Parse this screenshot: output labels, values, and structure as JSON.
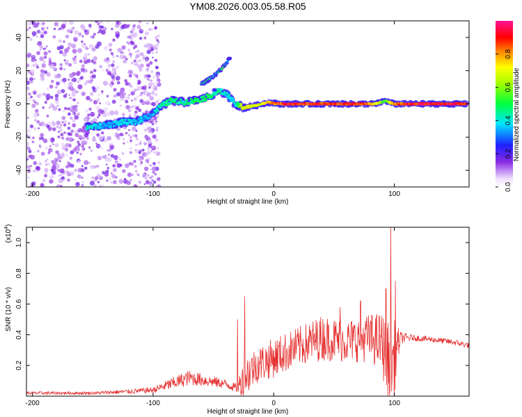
{
  "title": "YM08.2026.003.05.58.R05",
  "chart_data": [
    {
      "type": "heatmap",
      "name": "spectrogram",
      "xlabel": "Height of straight line (km)",
      "ylabel": "Frequency (Hz)",
      "xlim": [
        -205,
        162
      ],
      "ylim": [
        -50,
        50
      ],
      "xticks": [
        -200,
        -100,
        0,
        100
      ],
      "yticks": [
        -40,
        -20,
        0,
        20,
        40
      ],
      "colorbar": {
        "label": "Normalized spectral amplitude",
        "range": [
          0,
          1
        ],
        "ticks": [
          0.0,
          0.2,
          0.4,
          0.6,
          0.8
        ],
        "tick_labels": [
          "0.0",
          "0.2",
          "0.4",
          "0.6",
          "0.8"
        ]
      },
      "ridge": [
        {
          "x": -155,
          "y": -14,
          "a": 0.45
        },
        {
          "x": -140,
          "y": -13,
          "a": 0.35
        },
        {
          "x": -125,
          "y": -11,
          "a": 0.4
        },
        {
          "x": -115,
          "y": -11,
          "a": 0.4
        },
        {
          "x": -100,
          "y": -6,
          "a": 0.35
        },
        {
          "x": -95,
          "y": -2,
          "a": 0.45
        },
        {
          "x": -85,
          "y": 2,
          "a": 0.5
        },
        {
          "x": -75,
          "y": 1,
          "a": 0.45
        },
        {
          "x": -65,
          "y": 2,
          "a": 0.5
        },
        {
          "x": -55,
          "y": 4,
          "a": 0.5
        },
        {
          "x": -45,
          "y": 8,
          "a": 0.45
        },
        {
          "x": -38,
          "y": 5,
          "a": 0.4
        },
        {
          "x": -32,
          "y": 0,
          "a": 0.4
        },
        {
          "x": -25,
          "y": -2,
          "a": 0.75
        },
        {
          "x": -15,
          "y": -1,
          "a": 0.7
        },
        {
          "x": -5,
          "y": 1,
          "a": 0.8
        },
        {
          "x": 5,
          "y": 0,
          "a": 0.9
        },
        {
          "x": 15,
          "y": 0,
          "a": 0.95
        },
        {
          "x": 25,
          "y": 0,
          "a": 0.9
        },
        {
          "x": 35,
          "y": 0,
          "a": 0.95
        },
        {
          "x": 45,
          "y": 0,
          "a": 0.9
        },
        {
          "x": 55,
          "y": 0,
          "a": 0.9
        },
        {
          "x": 65,
          "y": 0,
          "a": 0.95
        },
        {
          "x": 75,
          "y": 0,
          "a": 0.9
        },
        {
          "x": 85,
          "y": 0,
          "a": 0.75
        },
        {
          "x": 92,
          "y": 2,
          "a": 0.55
        },
        {
          "x": 100,
          "y": 0,
          "a": 0.85
        },
        {
          "x": 115,
          "y": 0,
          "a": 0.98
        },
        {
          "x": 130,
          "y": 0,
          "a": 0.95
        },
        {
          "x": 145,
          "y": 0,
          "a": 0.97
        },
        {
          "x": 160,
          "y": 0,
          "a": 0.95
        }
      ],
      "upper_branch": [
        {
          "x": -60,
          "y": 12,
          "a": 0.45
        },
        {
          "x": -55,
          "y": 14,
          "a": 0.5
        },
        {
          "x": -48,
          "y": 18,
          "a": 0.4
        },
        {
          "x": -42,
          "y": 22,
          "a": 0.55
        },
        {
          "x": -36,
          "y": 28,
          "a": 0.2
        }
      ]
    },
    {
      "type": "line",
      "name": "snr",
      "xlabel": "Height of straight line (km)",
      "ylabel": "SNR (10 * v/v)",
      "yscale_label": "(x10",
      "yscale_exp": "4",
      "xlim": [
        -205,
        162
      ],
      "ylim": [
        0.0,
        1.1
      ],
      "xticks": [
        -200,
        -100,
        0,
        100
      ],
      "yticks": [
        0.2,
        0.4,
        0.6,
        0.8,
        1.0
      ],
      "xtick_labels": [
        "-200",
        "-100",
        "0",
        "100"
      ],
      "ytick_labels": [
        "0.2",
        "0.4",
        "0.6",
        "0.8",
        "1.0"
      ],
      "color": "#e53030",
      "envelope": {
        "x": [
          -205,
          -150,
          -120,
          -100,
          -85,
          -70,
          -55,
          -40,
          -30,
          -25,
          -15,
          0,
          20,
          40,
          60,
          80,
          90,
          95,
          100,
          105,
          115,
          130,
          150,
          162
        ],
        "base": [
          0.02,
          0.02,
          0.03,
          0.04,
          0.08,
          0.12,
          0.1,
          0.08,
          0.05,
          0.12,
          0.2,
          0.25,
          0.32,
          0.38,
          0.36,
          0.38,
          0.35,
          0.2,
          0.25,
          0.38,
          0.38,
          0.37,
          0.35,
          0.33
        ],
        "amp": [
          0.01,
          0.01,
          0.015,
          0.02,
          0.04,
          0.05,
          0.04,
          0.03,
          0.03,
          0.15,
          0.12,
          0.13,
          0.13,
          0.15,
          0.14,
          0.16,
          0.2,
          0.3,
          0.25,
          0.04,
          0.02,
          0.02,
          0.02,
          0.02
        ]
      },
      "spikes": [
        {
          "x": -24,
          "y": 0.65
        },
        {
          "x": -30,
          "y": 0.5
        },
        {
          "x": 72,
          "y": 0.62
        },
        {
          "x": 93,
          "y": 0.7
        },
        {
          "x": 97,
          "y": 1.1
        },
        {
          "x": 101,
          "y": 0.75
        },
        {
          "x": 55,
          "y": 0.58
        }
      ]
    }
  ],
  "colors": {
    "snr_line": "#e53030",
    "axis": "#000000"
  }
}
